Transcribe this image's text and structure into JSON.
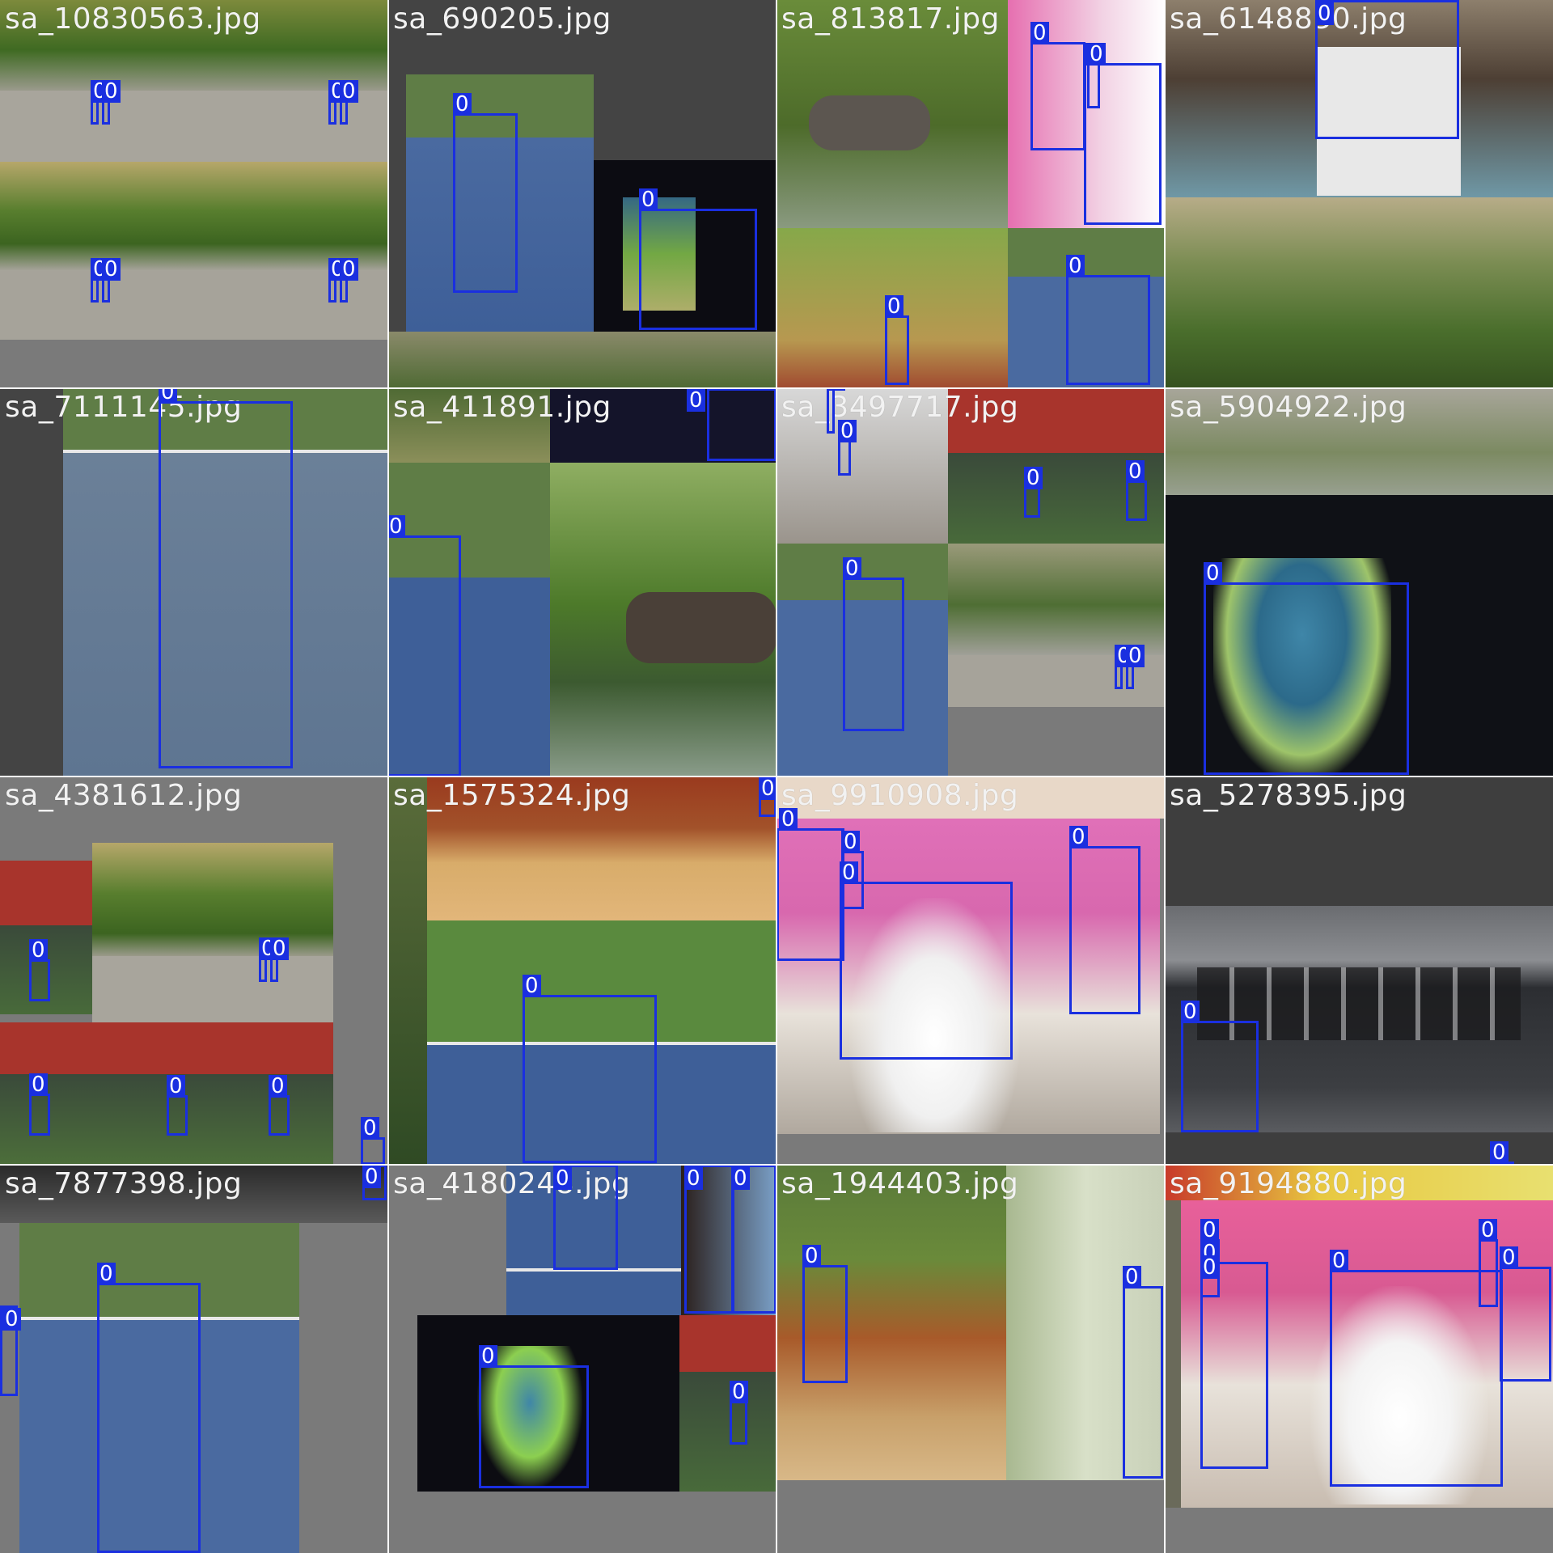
{
  "window": {
    "title": ""
  },
  "colors": {
    "bbox": "#1a2fe0",
    "label_bg": "#1a2fe0",
    "label_text": "#ffffff",
    "filename_text": "#f2f2f2",
    "pad": "#7a7a7a"
  },
  "class_label": "0",
  "tiles": [
    {
      "filename": "sa_10830563.jpg",
      "detections": 8
    },
    {
      "filename": "sa_690205.jpg",
      "detections": 2
    },
    {
      "filename": "sa_813817.jpg",
      "detections": 5
    },
    {
      "filename": "sa_6148830.jpg",
      "detections": 1
    },
    {
      "filename": "sa_7111145.jpg",
      "detections": 2
    },
    {
      "filename": "sa_411891.jpg",
      "detections": 1
    },
    {
      "filename": "sa_3497717.jpg",
      "detections": 7
    },
    {
      "filename": "sa_5904922.jpg",
      "detections": 1
    },
    {
      "filename": "sa_4381612.jpg",
      "detections": 7
    },
    {
      "filename": "sa_1575324.jpg",
      "detections": 2
    },
    {
      "filename": "sa_9910908.jpg",
      "detections": 4
    },
    {
      "filename": "sa_5278395.jpg",
      "detections": 2
    },
    {
      "filename": "sa_7877398.jpg",
      "detections": 3
    },
    {
      "filename": "sa_4180248.jpg",
      "detections": 6
    },
    {
      "filename": "sa_1944403.jpg",
      "detections": 2
    },
    {
      "filename": "sa_9194880.jpg",
      "detections": 6
    }
  ]
}
